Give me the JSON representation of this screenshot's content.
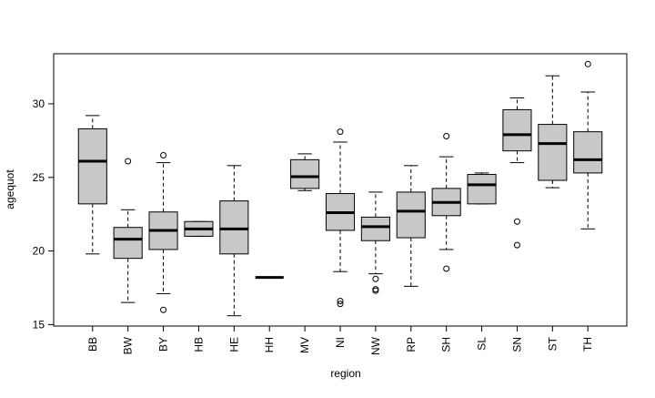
{
  "chart_data": {
    "type": "boxplot",
    "xlabel": "region",
    "ylabel": "agequot",
    "categories": [
      "BB",
      "BW",
      "BY",
      "HB",
      "HE",
      "HH",
      "MV",
      "NI",
      "NW",
      "RP",
      "SH",
      "SL",
      "SN",
      "ST",
      "TH"
    ],
    "boxes": [
      {
        "whisker_low": 19.8,
        "q1": 23.2,
        "median": 26.1,
        "q3": 28.3,
        "whisker_high": 29.2,
        "outliers": []
      },
      {
        "whisker_low": 16.5,
        "q1": 19.5,
        "median": 20.8,
        "q3": 21.6,
        "whisker_high": 22.8,
        "outliers": [
          26.1
        ]
      },
      {
        "whisker_low": 17.1,
        "q1": 20.1,
        "median": 21.4,
        "q3": 22.65,
        "whisker_high": 26.0,
        "outliers": [
          26.5,
          16.0
        ]
      },
      {
        "whisker_low": 21.0,
        "q1": 21.0,
        "median": 21.5,
        "q3": 22.0,
        "whisker_high": 22.0,
        "outliers": []
      },
      {
        "whisker_low": 15.6,
        "q1": 19.8,
        "median": 21.5,
        "q3": 23.4,
        "whisker_high": 25.8,
        "outliers": []
      },
      {
        "whisker_low": 18.2,
        "q1": 18.2,
        "median": 18.2,
        "q3": 18.2,
        "whisker_high": 18.2,
        "outliers": []
      },
      {
        "whisker_low": 24.1,
        "q1": 24.25,
        "median": 25.05,
        "q3": 26.2,
        "whisker_high": 26.6,
        "outliers": []
      },
      {
        "whisker_low": 18.6,
        "q1": 21.4,
        "median": 22.6,
        "q3": 23.9,
        "whisker_high": 27.4,
        "outliers": [
          28.1,
          16.6,
          16.4
        ]
      },
      {
        "whisker_low": 18.45,
        "q1": 20.7,
        "median": 21.65,
        "q3": 22.3,
        "whisker_high": 24.0,
        "outliers": [
          18.1,
          17.4,
          17.3
        ]
      },
      {
        "whisker_low": 17.6,
        "q1": 20.9,
        "median": 22.7,
        "q3": 24.0,
        "whisker_high": 25.8,
        "outliers": []
      },
      {
        "whisker_low": 20.1,
        "q1": 22.4,
        "median": 23.3,
        "q3": 24.25,
        "whisker_high": 26.4,
        "outliers": [
          27.8,
          18.8
        ]
      },
      {
        "whisker_low": 23.2,
        "q1": 23.2,
        "median": 24.5,
        "q3": 25.2,
        "whisker_high": 25.3,
        "outliers": []
      },
      {
        "whisker_low": 26.0,
        "q1": 26.8,
        "median": 27.9,
        "q3": 29.6,
        "whisker_high": 30.4,
        "outliers": [
          22.0,
          20.4
        ]
      },
      {
        "whisker_low": 24.3,
        "q1": 24.8,
        "median": 27.3,
        "q3": 28.6,
        "whisker_high": 31.9,
        "outliers": []
      },
      {
        "whisker_low": 21.5,
        "q1": 25.3,
        "median": 26.2,
        "q3": 28.1,
        "whisker_high": 30.8,
        "outliers": [
          32.7
        ]
      }
    ],
    "color": "#c8c8c8",
    "ylim": [
      14.9,
      33.4
    ],
    "yticks": [
      15,
      20,
      25,
      30
    ]
  }
}
